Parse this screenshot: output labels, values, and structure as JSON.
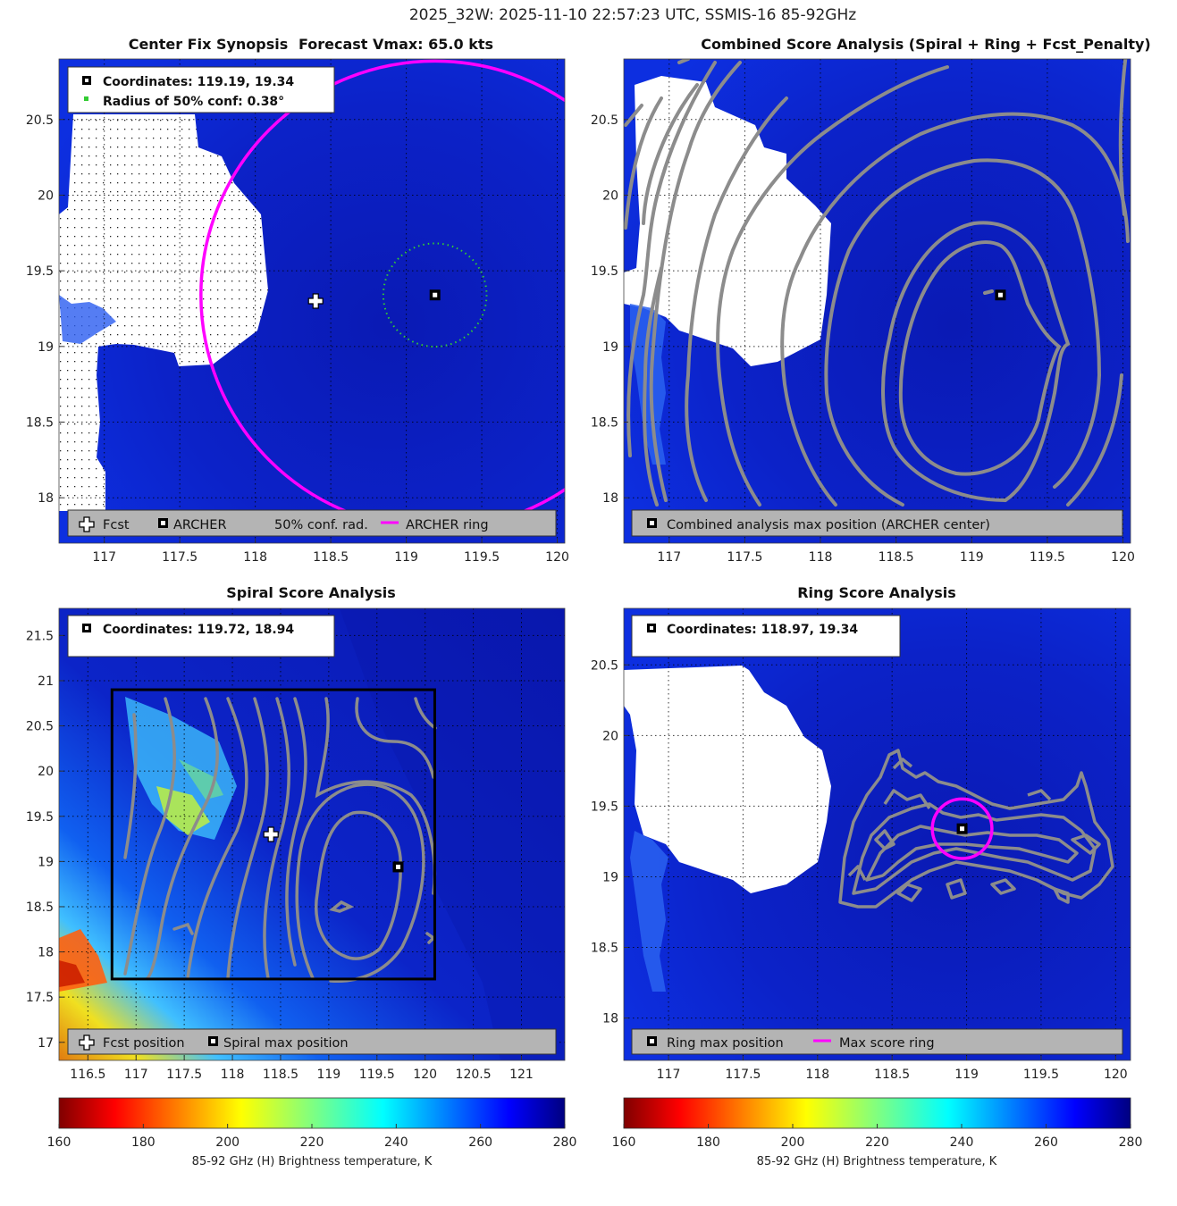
{
  "figure_title": "2025_32W: 2025-11-10 22:57:23 UTC, SSMIS-16 85-92GHz",
  "colors": {
    "fcst_marker": "#ffffff",
    "archer_marker": "#000000",
    "conf_circle": "#33cc33",
    "archer_ring": "#ff00ff",
    "contour": "#8c8c8c",
    "search_box": "#000000",
    "legend_bg": "#b4b4b4"
  },
  "chart_data": [
    {
      "type": "heatmap",
      "id": "synopsis",
      "title_left": "Center Fix Synopsis",
      "title_right": "Forecast Vmax: 65.0 kts",
      "x_ticks": [
        "117",
        "117.5",
        "118",
        "118.5",
        "119",
        "119.5",
        "120"
      ],
      "y_ticks": [
        "20.5",
        "20",
        "19.5",
        "19",
        "18.5",
        "18"
      ],
      "xlim": [
        116.7,
        120.05
      ],
      "ylim": [
        17.7,
        20.9
      ],
      "info_lines": [
        "Coordinates: 119.19, 19.34",
        "Radius of 50% conf: 0.38°"
      ],
      "points": {
        "fcst": [
          118.4,
          19.3
        ],
        "archer": [
          119.19,
          19.34
        ]
      },
      "conf_radius_deg": 0.38,
      "archer_ring": {
        "center": [
          119.19,
          19.34
        ],
        "radius_deg": 1.55
      },
      "legend": [
        "Fcst",
        "ARCHER",
        "50% conf. rad.",
        "ARCHER ring"
      ]
    },
    {
      "type": "heatmap",
      "id": "combined",
      "title": "Combined Score Analysis (Spiral + Ring + Fcst_Penalty)",
      "x_ticks": [
        "117",
        "117.5",
        "118",
        "118.5",
        "119",
        "119.5",
        "120"
      ],
      "y_ticks": [
        "20.5",
        "20",
        "19.5",
        "19",
        "18.5",
        "18"
      ],
      "xlim": [
        116.7,
        120.05
      ],
      "ylim": [
        17.7,
        20.9
      ],
      "points": {
        "max": [
          119.19,
          19.34
        ]
      },
      "legend": [
        "Combined analysis max position (ARCHER center)"
      ]
    },
    {
      "type": "heatmap",
      "id": "spiral",
      "title": "Spiral Score Analysis",
      "x_ticks": [
        "116.5",
        "117",
        "117.5",
        "118",
        "118.5",
        "119",
        "119.5",
        "120",
        "120.5",
        "121"
      ],
      "y_ticks": [
        "21.5",
        "21",
        "20.5",
        "20",
        "19.5",
        "19",
        "18.5",
        "18",
        "17.5",
        "17"
      ],
      "xlim": [
        116.2,
        121.45
      ],
      "ylim": [
        16.8,
        21.8
      ],
      "info_lines": [
        "Coordinates: 119.72, 18.94"
      ],
      "points": {
        "fcst": [
          118.4,
          19.3
        ],
        "spiral_max": [
          119.72,
          18.94
        ]
      },
      "search_box": {
        "x": [
          116.75,
          120.1
        ],
        "y": [
          17.7,
          20.9
        ]
      },
      "legend": [
        "Fcst position",
        "Spiral max position"
      ]
    },
    {
      "type": "heatmap",
      "id": "ring",
      "title": "Ring Score Analysis",
      "x_ticks": [
        "117",
        "117.5",
        "118",
        "118.5",
        "119",
        "119.5",
        "120"
      ],
      "y_ticks": [
        "20.5",
        "20",
        "19.5",
        "19",
        "18.5",
        "18"
      ],
      "xlim": [
        116.7,
        120.1
      ],
      "ylim": [
        17.7,
        20.9
      ],
      "info_lines": [
        "Coordinates: 118.97, 19.34"
      ],
      "points": {
        "ring_max": [
          118.97,
          19.34
        ]
      },
      "max_score_ring": {
        "center": [
          118.97,
          19.34
        ],
        "radius_deg": 0.2
      },
      "legend": [
        "Ring max position",
        "Max score ring"
      ]
    }
  ],
  "colorbar": {
    "ticks": [
      "160",
      "180",
      "200",
      "220",
      "240",
      "260",
      "280"
    ],
    "range": [
      160,
      280
    ],
    "label": "85-92 GHz (H) Brightness temperature, K"
  }
}
